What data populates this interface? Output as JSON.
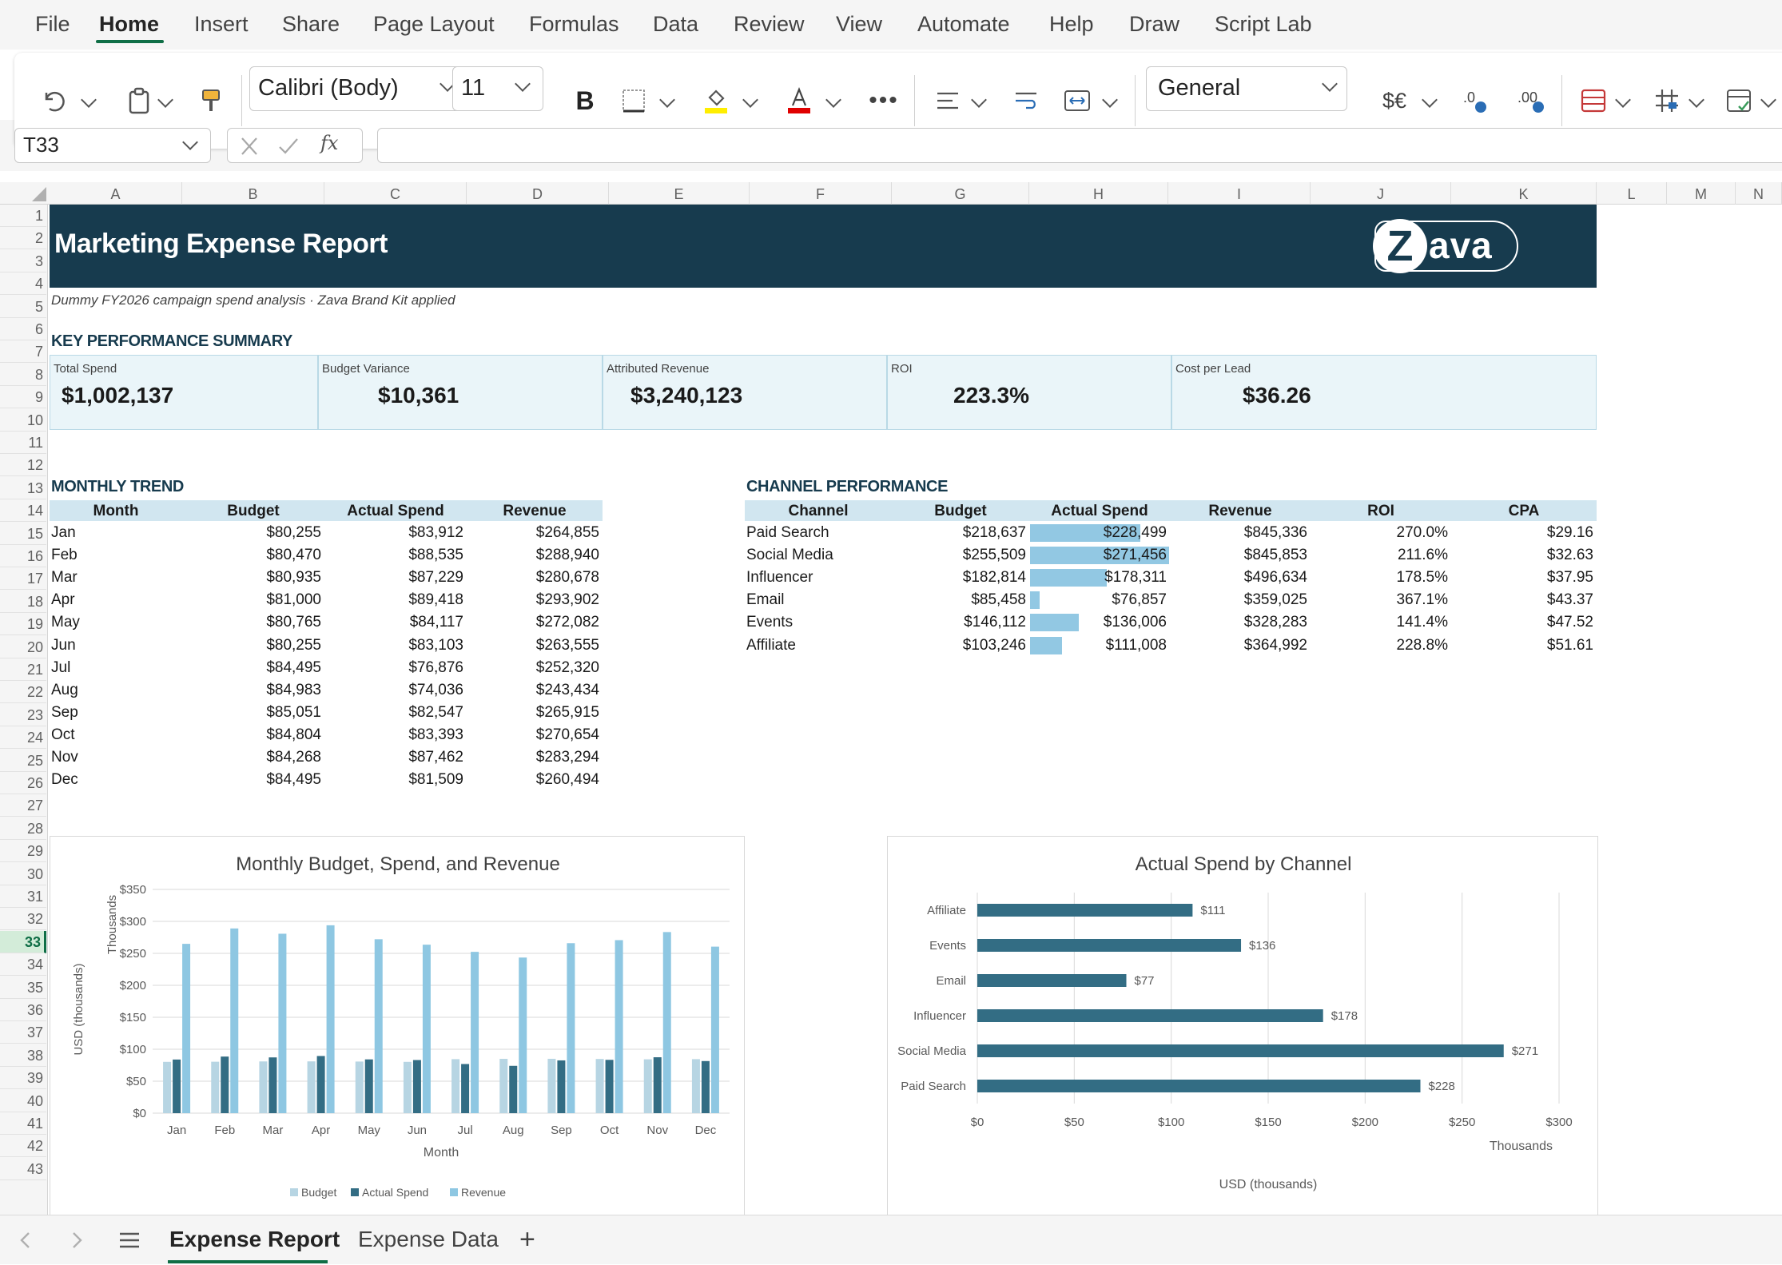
{
  "menu": {
    "items": [
      "File",
      "Home",
      "Insert",
      "Share",
      "Page Layout",
      "Formulas",
      "Data",
      "Review",
      "View",
      "Automate",
      "Help",
      "Draw",
      "Script Lab"
    ],
    "active": "Home"
  },
  "ribbon": {
    "font_name": "Calibri (Body)",
    "font_size": "11",
    "bold_label": "B",
    "number_format": "General",
    "currency_label": "$€",
    "fill_color": "#ffee00",
    "font_color": "#e00000"
  },
  "formula_bar": {
    "name_box": "T33",
    "fx_label": "fx",
    "formula": ""
  },
  "grid": {
    "columns": [
      "A",
      "B",
      "C",
      "D",
      "E",
      "F",
      "G",
      "H",
      "I",
      "J",
      "K",
      "L",
      "M",
      "N"
    ],
    "selected_row": 33,
    "selected_cell": "T33"
  },
  "report": {
    "title": "Marketing Expense Report",
    "logo_text": "Zava",
    "subtitle": "Dummy FY2026 campaign spend analysis · Zava Brand Kit applied",
    "kpi_heading": "KEY PERFORMANCE SUMMARY",
    "kpis": [
      {
        "label": "Total Spend",
        "value": "$1,002,137"
      },
      {
        "label": "Budget Variance",
        "value": "$10,361"
      },
      {
        "label": "Attributed Revenue",
        "value": "$3,240,123"
      },
      {
        "label": "ROI",
        "value": "223.3%"
      },
      {
        "label": "Cost per Lead",
        "value": "$36.26"
      }
    ],
    "monthly": {
      "heading": "MONTHLY TREND",
      "headers": [
        "Month",
        "Budget",
        "Actual Spend",
        "Revenue"
      ],
      "rows": [
        [
          "Jan",
          "$80,255",
          "$83,912",
          "$264,855"
        ],
        [
          "Feb",
          "$80,470",
          "$88,535",
          "$288,940"
        ],
        [
          "Mar",
          "$80,935",
          "$87,229",
          "$280,678"
        ],
        [
          "Apr",
          "$81,000",
          "$89,418",
          "$293,902"
        ],
        [
          "May",
          "$80,765",
          "$84,117",
          "$272,082"
        ],
        [
          "Jun",
          "$80,255",
          "$83,103",
          "$263,555"
        ],
        [
          "Jul",
          "$84,495",
          "$76,876",
          "$252,320"
        ],
        [
          "Aug",
          "$84,983",
          "$74,036",
          "$243,434"
        ],
        [
          "Sep",
          "$85,051",
          "$82,547",
          "$265,915"
        ],
        [
          "Oct",
          "$84,804",
          "$83,393",
          "$270,654"
        ],
        [
          "Nov",
          "$84,268",
          "$87,462",
          "$283,294"
        ],
        [
          "Dec",
          "$84,495",
          "$81,509",
          "$260,494"
        ]
      ]
    },
    "channel": {
      "heading": "CHANNEL PERFORMANCE",
      "headers": [
        "Channel",
        "Budget",
        "Actual Spend",
        "Revenue",
        "ROI",
        "CPA"
      ],
      "rows": [
        [
          "Paid Search",
          "$218,637",
          "$228,499",
          "$845,336",
          "270.0%",
          "$29.16"
        ],
        [
          "Social Media",
          "$255,509",
          "$271,456",
          "$845,853",
          "211.6%",
          "$32.63"
        ],
        [
          "Influencer",
          "$182,814",
          "$178,311",
          "$496,634",
          "178.5%",
          "$37.95"
        ],
        [
          "Email",
          "$85,458",
          "$76,857",
          "$359,025",
          "367.1%",
          "$43.37"
        ],
        [
          "Events",
          "$146,112",
          "$136,006",
          "$328,283",
          "141.4%",
          "$47.52"
        ],
        [
          "Affiliate",
          "$103,246",
          "$111,008",
          "$364,992",
          "228.8%",
          "$51.61"
        ]
      ],
      "actual_spend_values": [
        228499,
        271456,
        178311,
        76857,
        136006,
        111008
      ]
    }
  },
  "chart_data": [
    {
      "type": "bar",
      "title": "Monthly Budget, Spend, and Revenue",
      "categories": [
        "Jan",
        "Feb",
        "Mar",
        "Apr",
        "May",
        "Jun",
        "Jul",
        "Aug",
        "Sep",
        "Oct",
        "Nov",
        "Dec"
      ],
      "series": [
        {
          "name": "Budget",
          "values": [
            80.255,
            80.47,
            80.935,
            81,
            80.765,
            80.255,
            84.495,
            84.983,
            85.051,
            84.804,
            84.268,
            84.495
          ],
          "color": "#b7d5e3"
        },
        {
          "name": "Actual Spend",
          "values": [
            83.912,
            88.535,
            87.229,
            89.418,
            84.117,
            83.103,
            76.876,
            74.036,
            82.547,
            83.393,
            87.462,
            81.509
          ],
          "color": "#336d84"
        },
        {
          "name": "Revenue",
          "values": [
            264.855,
            288.94,
            280.678,
            293.902,
            272.082,
            263.555,
            252.32,
            243.434,
            265.915,
            270.654,
            283.294,
            260.494
          ],
          "color": "#8ec7e2"
        }
      ],
      "xlabel": "Month",
      "ylabel": "USD (thousands)",
      "unit_label": "Thousands",
      "ylim": [
        0,
        350
      ],
      "yticks": [
        0,
        50,
        100,
        150,
        200,
        250,
        300,
        350
      ],
      "ytick_labels": [
        "$0",
        "$50",
        "$100",
        "$150",
        "$200",
        "$250",
        "$300",
        "$350"
      ],
      "grid": true,
      "legend": "bottom"
    },
    {
      "type": "bar",
      "orientation": "horizontal",
      "title": "Actual Spend by Channel",
      "categories": [
        "Affiliate",
        "Events",
        "Email",
        "Influencer",
        "Social Media",
        "Paid Search"
      ],
      "values": [
        111.008,
        136.006,
        76.857,
        178.311,
        271.456,
        228.499
      ],
      "data_labels": [
        "$111",
        "$136",
        "$77",
        "$178",
        "$271",
        "$228"
      ],
      "color": "#336d84",
      "xlabel": "USD (thousands)",
      "unit_label": "Thousands",
      "xlim": [
        0,
        300
      ],
      "xticks": [
        0,
        50,
        100,
        150,
        200,
        250,
        300
      ],
      "xtick_labels": [
        "$0",
        "$50",
        "$100",
        "$150",
        "$200",
        "$250",
        "$300"
      ],
      "grid": true
    }
  ],
  "sheet_tabs": {
    "tabs": [
      "Expense Report",
      "Expense Data"
    ],
    "active": "Expense Report",
    "add_label": "+"
  }
}
